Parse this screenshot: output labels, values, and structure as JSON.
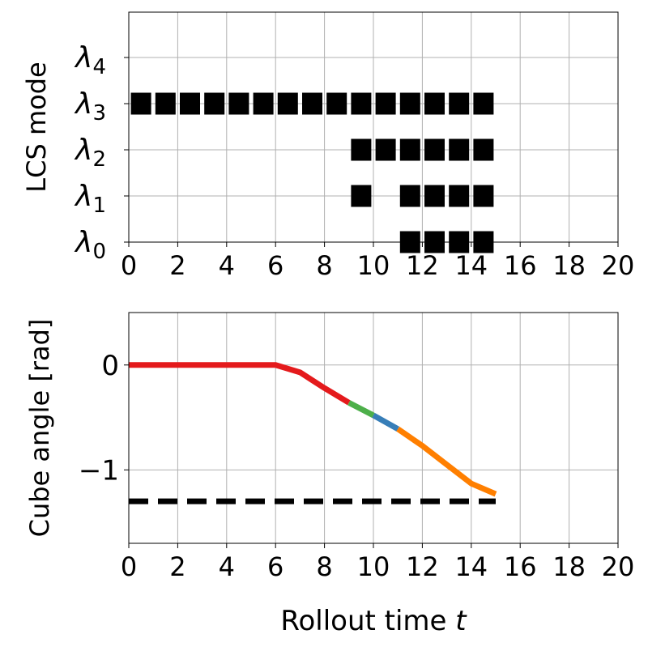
{
  "chart_data": [
    {
      "type": "heatmap",
      "ylabel": "LCS mode",
      "xlabel": "",
      "xlim": [
        0,
        20
      ],
      "x_ticks": [
        0,
        2,
        4,
        6,
        8,
        10,
        12,
        14,
        16,
        18,
        20
      ],
      "y_categories": [
        "λ0",
        "λ1",
        "λ2",
        "λ3",
        "λ4"
      ],
      "y_tick_labels": [
        {
          "base": "λ",
          "sub": "0"
        },
        {
          "base": "λ",
          "sub": "1"
        },
        {
          "base": "λ",
          "sub": "2"
        },
        {
          "base": "λ",
          "sub": "3"
        },
        {
          "base": "λ",
          "sub": "4"
        }
      ],
      "grid": true,
      "marker_color": "#000000",
      "active_modes": [
        {
          "mode": "λ3",
          "t": [
            0,
            1,
            2,
            3,
            4,
            5,
            6,
            7,
            8,
            9,
            10,
            11,
            12,
            13,
            14
          ]
        },
        {
          "mode": "λ2",
          "t": [
            9,
            10,
            11,
            12,
            13,
            14
          ]
        },
        {
          "mode": "λ1",
          "t": [
            9,
            11,
            12,
            13,
            14
          ]
        },
        {
          "mode": "λ0",
          "t": [
            11,
            12,
            13,
            14
          ]
        }
      ]
    },
    {
      "type": "line",
      "ylabel": "Cube angle [rad]",
      "xlabel": "Rollout time t",
      "xlim": [
        0,
        20
      ],
      "ylim": [
        -1.7,
        0.5
      ],
      "x_ticks": [
        0,
        2,
        4,
        6,
        8,
        10,
        12,
        14,
        16,
        18,
        20
      ],
      "y_ticks": [
        {
          "value": 0,
          "label": "0"
        },
        {
          "value": -1,
          "label": "−1"
        }
      ],
      "grid": true,
      "series": [
        {
          "color": "#e41a1c",
          "x": [
            0,
            1,
            2,
            3,
            4,
            5,
            6,
            7,
            8,
            9
          ],
          "y": [
            0,
            0,
            0,
            0,
            0,
            0,
            0,
            -0.07,
            -0.22,
            -0.36
          ]
        },
        {
          "color": "#4daf4a",
          "x": [
            9,
            10
          ],
          "y": [
            -0.36,
            -0.48
          ]
        },
        {
          "color": "#377eb8",
          "x": [
            10,
            11
          ],
          "y": [
            -0.48,
            -0.61
          ]
        },
        {
          "color": "#ff7f00",
          "x": [
            11,
            12,
            13,
            14,
            15
          ],
          "y": [
            -0.61,
            -0.77,
            -0.95,
            -1.13,
            -1.23
          ]
        }
      ],
      "reference": {
        "color": "#000000",
        "style": "dashed",
        "x": [
          0,
          15
        ],
        "y": [
          -1.3,
          -1.3
        ]
      }
    }
  ]
}
